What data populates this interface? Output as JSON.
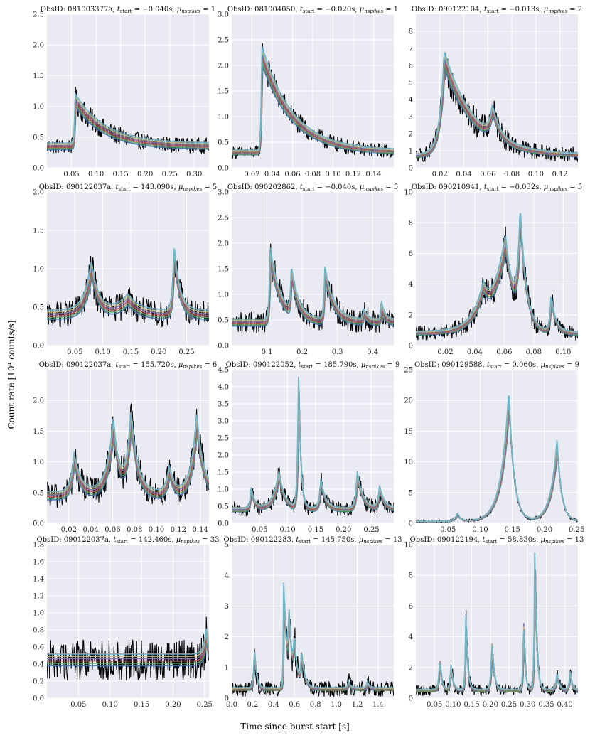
{
  "figure": {
    "ylabel": "Count rate [10⁴ counts/s]",
    "xlabel": "Time since burst start [s]",
    "style": {
      "plot_bg": "#eaeaf2",
      "grid": "#ffffff",
      "data_color": "#000000",
      "model_colors": [
        "#4c72b0",
        "#55a868",
        "#c44e52",
        "#8172b2",
        "#ccb974",
        "#64b5cd"
      ]
    }
  },
  "chart_data": [
    {
      "type": "line",
      "obsid": "081003377a",
      "tstart": "−0.040s",
      "nspikes": "1",
      "xlim": [
        0.0,
        0.33
      ],
      "ylim": [
        0.0,
        2.5
      ],
      "xticks": [
        "0.05",
        "0.10",
        "0.15",
        "0.20",
        "0.25",
        "0.30"
      ],
      "xtick_vals": [
        0.05,
        0.1,
        0.15,
        0.2,
        0.25,
        0.3
      ],
      "yticks": [
        "0.0",
        "0.5",
        "1.0",
        "1.5",
        "2.0",
        "2.5"
      ],
      "ytick_vals": [
        0.0,
        0.5,
        1.0,
        1.5,
        2.0,
        2.5
      ],
      "baseline": 0.35,
      "noise": 0.3,
      "peaks": [
        [
          0.058,
          0.75,
          0.0015,
          0.06
        ]
      ]
    },
    {
      "type": "line",
      "obsid": "081004050",
      "tstart": "−0.020s",
      "nspikes": "1",
      "xlim": [
        0.0,
        0.16
      ],
      "ylim": [
        0.0,
        3.0
      ],
      "xticks": [
        "0.02",
        "0.04",
        "0.06",
        "0.08",
        "0.10",
        "0.12",
        "0.14"
      ],
      "xtick_vals": [
        0.02,
        0.04,
        0.06,
        0.08,
        0.1,
        0.12,
        0.14
      ],
      "yticks": [
        "0.0",
        "0.5",
        "1.0",
        "1.5",
        "2.0",
        "2.5",
        "3.0"
      ],
      "ytick_vals": [
        0.0,
        0.5,
        1.0,
        1.5,
        2.0,
        2.5,
        3.0
      ],
      "baseline": 0.3,
      "noise": 0.35,
      "peaks": [
        [
          0.03,
          1.9,
          0.0008,
          0.03
        ]
      ]
    },
    {
      "type": "line",
      "obsid": "090122104",
      "tstart": "−0.013s",
      "nspikes": "2",
      "xlim": [
        0.0,
        0.135
      ],
      "ylim": [
        0.0,
        9.0
      ],
      "xticks": [
        "0.02",
        "0.04",
        "0.06",
        "0.08",
        "0.10",
        "0.12"
      ],
      "xtick_vals": [
        0.02,
        0.04,
        0.06,
        0.08,
        0.1,
        0.12
      ],
      "yticks": [
        "0",
        "1",
        "2",
        "3",
        "4",
        "5",
        "6",
        "7",
        "8"
      ],
      "ytick_vals": [
        0,
        1,
        2,
        3,
        4,
        5,
        6,
        7,
        8
      ],
      "baseline": 0.7,
      "noise": 0.5,
      "peaks": [
        [
          0.024,
          5.6,
          0.004,
          0.025
        ],
        [
          0.064,
          1.6,
          0.003,
          0.006
        ]
      ]
    },
    {
      "type": "line",
      "obsid": "090122037a",
      "tstart": "143.090s",
      "nspikes": "5",
      "xlim": [
        0.0,
        0.29
      ],
      "ylim": [
        0.0,
        2.0
      ],
      "xticks": [
        "0.05",
        "0.10",
        "0.15",
        "0.20",
        "0.25"
      ],
      "xtick_vals": [
        0.05,
        0.1,
        0.15,
        0.2,
        0.25
      ],
      "yticks": [
        "0.0",
        "0.5",
        "1.0",
        "1.5",
        "2.0"
      ],
      "ytick_vals": [
        0.0,
        0.5,
        1.0,
        1.5,
        2.0
      ],
      "baseline": 0.4,
      "noise": 0.35,
      "peaks": [
        [
          0.08,
          0.6,
          0.012,
          0.012
        ],
        [
          0.145,
          0.2,
          0.02,
          0.02
        ],
        [
          0.228,
          0.8,
          0.003,
          0.01
        ]
      ]
    },
    {
      "type": "line",
      "obsid": "090202862",
      "tstart": "−0.040s",
      "nspikes": "5",
      "xlim": [
        0.0,
        0.46
      ],
      "ylim": [
        0.0,
        3.0
      ],
      "xticks": [
        "0.1",
        "0.2",
        "0.3",
        "0.4"
      ],
      "xtick_vals": [
        0.1,
        0.2,
        0.3,
        0.4
      ],
      "yticks": [
        "0.0",
        "0.5",
        "1.0",
        "1.5",
        "2.0",
        "2.5",
        "3.0"
      ],
      "ytick_vals": [
        0.0,
        0.5,
        1.0,
        1.5,
        2.0,
        2.5,
        3.0
      ],
      "baseline": 0.45,
      "noise": 0.4,
      "peaks": [
        [
          0.11,
          1.3,
          0.003,
          0.03
        ],
        [
          0.17,
          0.8,
          0.003,
          0.02
        ],
        [
          0.265,
          0.95,
          0.003,
          0.025
        ],
        [
          0.375,
          0.2,
          0.002,
          0.01
        ],
        [
          0.425,
          0.35,
          0.002,
          0.01
        ]
      ]
    },
    {
      "type": "line",
      "obsid": "090210941",
      "tstart": "−0.032s",
      "nspikes": "5",
      "xlim": [
        0.0,
        0.11
      ],
      "ylim": [
        0.0,
        10.0
      ],
      "xticks": [
        "0.02",
        "0.04",
        "0.06",
        "0.08",
        "0.10"
      ],
      "xtick_vals": [
        0.02,
        0.04,
        0.06,
        0.08,
        0.1
      ],
      "yticks": [
        "0",
        "2",
        "4",
        "6",
        "8",
        "10"
      ],
      "ytick_vals": [
        0,
        2,
        4,
        6,
        8,
        10
      ],
      "baseline": 0.8,
      "noise": 0.5,
      "peaks": [
        [
          0.046,
          1.8,
          0.006,
          0.004
        ],
        [
          0.061,
          5.8,
          0.01,
          0.006
        ],
        [
          0.071,
          6.5,
          0.002,
          0.004
        ],
        [
          0.092,
          2.2,
          0.001,
          0.003
        ]
      ]
    },
    {
      "type": "line",
      "obsid": "090122037a",
      "tstart": "155.720s",
      "nspikes": "6",
      "xlim": [
        0.0,
        0.148
      ],
      "ylim": [
        0.0,
        2.5
      ],
      "xticks": [
        "0.02",
        "0.04",
        "0.06",
        "0.08",
        "0.10",
        "0.12",
        "0.14"
      ],
      "xtick_vals": [
        0.02,
        0.04,
        0.06,
        0.08,
        0.1,
        0.12,
        0.14
      ],
      "yticks": [
        "0.0",
        "0.5",
        "1.0",
        "1.5",
        "2.0"
      ],
      "ytick_vals": [
        0.0,
        0.5,
        1.0,
        1.5,
        2.0
      ],
      "baseline": 0.45,
      "noise": 0.4,
      "peaks": [
        [
          0.025,
          0.6,
          0.003,
          0.006
        ],
        [
          0.061,
          1.1,
          0.006,
          0.005
        ],
        [
          0.077,
          1.2,
          0.004,
          0.006
        ],
        [
          0.112,
          0.4,
          0.003,
          0.004
        ],
        [
          0.137,
          1.2,
          0.005,
          0.006
        ]
      ]
    },
    {
      "type": "line",
      "obsid": "090122052",
      "tstart": "185.790s",
      "nspikes": "9",
      "xlim": [
        0.0,
        0.29
      ],
      "ylim": [
        0.0,
        4.5
      ],
      "xticks": [
        "0.05",
        "0.10",
        "0.15",
        "0.20",
        "0.25"
      ],
      "xtick_vals": [
        0.05,
        0.1,
        0.15,
        0.2,
        0.25
      ],
      "yticks": [
        "0.0",
        "0.5",
        "1.0",
        "1.5",
        "2.0",
        "2.5",
        "3.0",
        "3.5",
        "4.0",
        "4.5"
      ],
      "ytick_vals": [
        0.0,
        0.5,
        1.0,
        1.5,
        2.0,
        2.5,
        3.0,
        3.5,
        4.0,
        4.5
      ],
      "baseline": 0.4,
      "noise": 0.45,
      "peaks": [
        [
          0.035,
          0.6,
          0.002,
          0.006
        ],
        [
          0.085,
          1.0,
          0.01,
          0.01
        ],
        [
          0.12,
          3.7,
          0.002,
          0.004
        ],
        [
          0.16,
          0.8,
          0.003,
          0.008
        ],
        [
          0.225,
          1.0,
          0.003,
          0.01
        ],
        [
          0.265,
          0.6,
          0.003,
          0.008
        ]
      ]
    },
    {
      "type": "line",
      "obsid": "090129588",
      "tstart": "0.060s",
      "nspikes": "9",
      "xlim": [
        0.0,
        0.252
      ],
      "ylim": [
        0.0,
        25.0
      ],
      "xticks": [
        "0.05",
        "0.10",
        "0.15",
        "0.20",
        "0.25"
      ],
      "xtick_vals": [
        0.05,
        0.1,
        0.15,
        0.2,
        0.25
      ],
      "yticks": [
        "0",
        "5",
        "10",
        "15",
        "20",
        "25"
      ],
      "ytick_vals": [
        0,
        5,
        10,
        15,
        20,
        25
      ],
      "baseline": 0.3,
      "noise": 0.5,
      "peaks": [
        [
          0.065,
          1.2,
          0.004,
          0.005
        ],
        [
          0.145,
          19.8,
          0.012,
          0.008
        ],
        [
          0.22,
          12.3,
          0.01,
          0.007
        ]
      ]
    },
    {
      "type": "line",
      "obsid": "090122037a",
      "tstart": "142.460s",
      "nspikes": "33",
      "xlim": [
        0.0,
        0.257
      ],
      "ylim": [
        0.0,
        1.8
      ],
      "xticks": [
        "0.05",
        "0.10",
        "0.15",
        "0.20",
        "0.25"
      ],
      "xtick_vals": [
        0.05,
        0.1,
        0.15,
        0.2,
        0.25
      ],
      "yticks": [
        "0.0",
        "0.2",
        "0.4",
        "0.6",
        "0.8",
        "1.0",
        "1.2",
        "1.4",
        "1.6",
        "1.8"
      ],
      "ytick_vals": [
        0.0,
        0.2,
        0.4,
        0.6,
        0.8,
        1.0,
        1.2,
        1.4,
        1.6,
        1.8
      ],
      "baseline": 0.45,
      "noise": 0.45,
      "peaks": [
        [
          0.253,
          0.3,
          0.004,
          0.003
        ]
      ]
    },
    {
      "type": "line",
      "obsid": "090122283",
      "tstart": "145.750s",
      "nspikes": "13",
      "xlim": [
        0.0,
        1.55
      ],
      "ylim": [
        0.0,
        5.0
      ],
      "xticks": [
        "0.0",
        "0.2",
        "0.4",
        "0.6",
        "0.8",
        "1.0",
        "1.2",
        "1.4"
      ],
      "xtick_vals": [
        0.0,
        0.2,
        0.4,
        0.6,
        0.8,
        1.0,
        1.2,
        1.4
      ],
      "yticks": [
        "0",
        "1",
        "2",
        "3",
        "4",
        "5"
      ],
      "ytick_vals": [
        0,
        1,
        2,
        3,
        4,
        5
      ],
      "baseline": 0.3,
      "noise": 0.7,
      "peaks": [
        [
          0.22,
          1.2,
          0.01,
          0.02
        ],
        [
          0.5,
          3.2,
          0.005,
          0.03
        ],
        [
          0.55,
          1.9,
          0.01,
          0.03
        ],
        [
          0.6,
          1.2,
          0.01,
          0.03
        ],
        [
          0.67,
          1.0,
          0.01,
          0.03
        ],
        [
          1.12,
          0.2,
          0.01,
          0.02
        ],
        [
          1.3,
          0.2,
          0.01,
          0.02
        ]
      ]
    },
    {
      "type": "line",
      "obsid": "090122194",
      "tstart": "58.830s",
      "nspikes": "13",
      "xlim": [
        0.0,
        0.435
      ],
      "ylim": [
        0.0,
        10.0
      ],
      "xticks": [
        "0.05",
        "0.10",
        "0.15",
        "0.20",
        "0.25",
        "0.30",
        "0.35",
        "0.40"
      ],
      "xtick_vals": [
        0.05,
        0.1,
        0.15,
        0.2,
        0.25,
        0.3,
        0.35,
        0.4
      ],
      "yticks": [
        "0",
        "2",
        "4",
        "6",
        "8",
        "10"
      ],
      "ytick_vals": [
        0,
        2,
        4,
        6,
        8,
        10
      ],
      "baseline": 0.5,
      "noise": 0.6,
      "peaks": [
        [
          0.065,
          2.0,
          0.003,
          0.005
        ],
        [
          0.095,
          1.5,
          0.003,
          0.006
        ],
        [
          0.135,
          4.5,
          0.002,
          0.005
        ],
        [
          0.205,
          3.0,
          0.003,
          0.006
        ],
        [
          0.29,
          4.5,
          0.002,
          0.004
        ],
        [
          0.32,
          8.8,
          0.002,
          0.005
        ],
        [
          0.38,
          1.0,
          0.004,
          0.006
        ],
        [
          0.415,
          1.2,
          0.003,
          0.005
        ]
      ]
    }
  ]
}
